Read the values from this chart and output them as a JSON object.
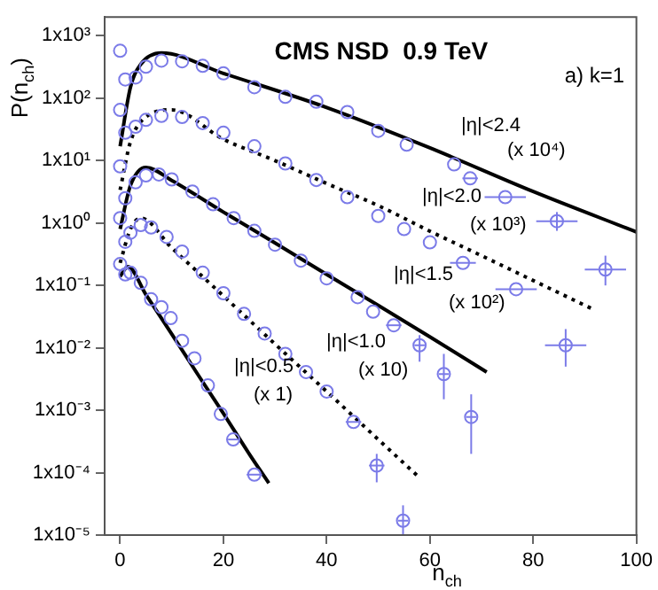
{
  "chart_data": {
    "type": "scatter",
    "title": "CMS NSD  0.9 TeV",
    "xlabel": "n$_{ch}$",
    "ylabel": "P(n$_{ch}$)",
    "log": "y",
    "grid": false,
    "legend": false,
    "marker": "circle",
    "xlim": [
      -3,
      100
    ],
    "xticks": [
      0,
      20,
      40,
      60,
      80,
      100
    ],
    "ylim": [
      1e-05,
      2000
    ],
    "yticks": [
      {
        "value": 1e-05,
        "label": "1x10⁻⁵"
      },
      {
        "value": 0.0001,
        "label": "1x10⁻⁴"
      },
      {
        "value": 0.001,
        "label": "1x10⁻³"
      },
      {
        "value": 0.01,
        "label": "1x10⁻²"
      },
      {
        "value": 0.1,
        "label": "1x10⁻¹"
      },
      {
        "value": 1,
        "label": "1x10⁰"
      },
      {
        "value": 10,
        "label": "1x10¹"
      },
      {
        "value": 100,
        "label": "1x10²"
      },
      {
        "value": 1000,
        "label": "1x10³"
      }
    ],
    "annotations": [
      "a) k=1",
      "|η|<2.4",
      "(x 10⁴)",
      "|η|<2.0",
      "(x 10³)",
      "|η|<1.5",
      "(x 10²)",
      "|η|<1.0",
      "(x 10)",
      "|η|<0.5",
      "(x 1)"
    ],
    "series": [
      {
        "type": "scatter",
        "color": "#7b7be8",
        "x": [
          0,
          1,
          3,
          5,
          8,
          12,
          16,
          20,
          26,
          32,
          38,
          44,
          50,
          55.5,
          64.7,
          67.8,
          74.6,
          84.6,
          94
        ],
        "values": [
          575,
          200,
          215,
          320,
          400,
          390,
          330,
          250,
          150,
          105,
          88,
          60,
          30,
          18,
          8.7,
          5.2,
          2.6,
          1.07,
          0.18
        ],
        "errors": [
          null,
          null,
          null,
          null,
          null,
          null,
          null,
          null,
          null,
          null,
          null,
          null,
          null,
          null,
          null,
          null,
          null,
          [
            0.75,
            1.5
          ],
          [
            0.1,
            0.3
          ]
        ],
        "xerrors": [
          null,
          null,
          null,
          null,
          null,
          null,
          null,
          null,
          null,
          null,
          null,
          null,
          null,
          null,
          null,
          1.5,
          4,
          4,
          4
        ]
      },
      {
        "type": "scatter",
        "color": "#7b7be8",
        "x": [
          0,
          1,
          3,
          5,
          8,
          12,
          16,
          20,
          26,
          32,
          38,
          44,
          50,
          55,
          60,
          66.4,
          76.7,
          86.3
        ],
        "values": [
          65,
          28,
          35,
          45,
          52,
          50,
          40,
          28,
          17,
          9,
          4.9,
          2.6,
          1.3,
          0.8,
          0.49,
          0.23,
          0.087,
          0.011
        ],
        "errors": [
          null,
          null,
          null,
          null,
          null,
          null,
          null,
          null,
          null,
          null,
          null,
          null,
          null,
          null,
          null,
          null,
          null,
          [
            0.005,
            0.02
          ]
        ],
        "xerrors": [
          null,
          null,
          null,
          null,
          null,
          null,
          null,
          null,
          null,
          null,
          null,
          null,
          null,
          null,
          null,
          2.5,
          4,
          4
        ]
      },
      {
        "type": "scatter",
        "color": "#7b7be8",
        "x": [
          0,
          1,
          3,
          5,
          7.5,
          10,
          14,
          18,
          22,
          26,
          30,
          35,
          40,
          46,
          49,
          53,
          58,
          62.7,
          68
        ],
        "values": [
          8.1,
          2.5,
          4.5,
          5.8,
          6,
          5,
          3.2,
          2,
          1.2,
          0.75,
          0.45,
          0.25,
          0.13,
          0.065,
          0.038,
          0.023,
          0.011,
          0.0038,
          0.00078
        ],
        "errors": [
          null,
          null,
          null,
          null,
          null,
          null,
          null,
          null,
          null,
          null,
          null,
          null,
          null,
          null,
          null,
          null,
          [
            0.006,
            0.016
          ],
          [
            0.0015,
            0.008
          ],
          [
            0.0002,
            0.0018
          ]
        ],
        "xerrors": [
          null,
          null,
          null,
          null,
          null,
          null,
          null,
          null,
          null,
          null,
          null,
          null,
          null,
          null,
          null,
          1.5,
          1,
          1,
          1
        ]
      },
      {
        "type": "scatter",
        "color": "#7b7be8",
        "x": [
          0,
          1,
          2,
          4,
          6,
          9,
          12,
          16,
          20,
          24,
          28,
          32,
          36,
          40,
          45.2,
          49.7,
          54.8
        ],
        "values": [
          1.2,
          0.5,
          0.7,
          0.93,
          0.85,
          0.6,
          0.35,
          0.16,
          0.075,
          0.035,
          0.017,
          0.008,
          0.0041,
          0.002,
          0.00065,
          0.00013,
          1.7e-05
        ],
        "errors": [
          null,
          null,
          null,
          null,
          null,
          null,
          null,
          null,
          null,
          null,
          null,
          null,
          null,
          null,
          null,
          [
            7e-05,
            0.0002
          ],
          [
            1e-05,
            3e-05
          ]
        ],
        "xerrors": [
          null,
          null,
          null,
          null,
          null,
          null,
          null,
          null,
          null,
          null,
          null,
          null,
          null,
          null,
          1.5,
          1.5,
          1
        ]
      },
      {
        "type": "scatter",
        "color": "#7b7be8",
        "x": [
          0,
          1,
          2,
          4,
          6,
          8,
          9.8,
          12,
          14.4,
          17,
          19.5,
          21.9,
          26
        ],
        "values": [
          0.22,
          0.15,
          0.16,
          0.11,
          0.06,
          0.045,
          0.03,
          0.013,
          0.0068,
          0.0025,
          0.00087,
          0.00034,
          9.3e-05
        ],
        "xerrors": [
          null,
          null,
          null,
          null,
          null,
          null,
          null,
          null,
          null,
          null,
          null,
          1,
          1.5
        ]
      },
      {
        "type": "line",
        "color": "#000000",
        "line_style": "solid",
        "marker": "none",
        "x": [
          0,
          2,
          4,
          8,
          20,
          40,
          60,
          80,
          100
        ],
        "values": [
          17,
          150,
          350,
          530,
          250,
          71,
          16,
          3.2,
          0.72
        ]
      },
      {
        "type": "line",
        "color": "#000000",
        "line_style": "dotted",
        "marker": "none",
        "x": [
          0,
          2,
          5,
          10,
          20,
          30,
          40,
          50,
          60,
          70,
          80,
          92
        ],
        "values": [
          3.4,
          20,
          50,
          65,
          22,
          10,
          4.3,
          1.9,
          0.74,
          0.3,
          0.12,
          0.04
        ]
      },
      {
        "type": "line",
        "color": "#000000",
        "line_style": "solid",
        "marker": "none",
        "x": [
          0,
          2,
          5,
          10,
          20,
          30,
          40,
          50,
          60,
          71
        ],
        "values": [
          0.8,
          4,
          7.8,
          4.8,
          1.5,
          0.48,
          0.15,
          0.048,
          0.015,
          0.0041
        ]
      },
      {
        "type": "line",
        "color": "#000000",
        "line_style": "dotted",
        "marker": "none",
        "x": [
          0,
          2,
          4,
          10,
          20,
          30,
          40,
          50,
          58
        ],
        "values": [
          0.23,
          0.8,
          1.2,
          0.4,
          0.068,
          0.0115,
          0.002,
          0.00034,
          8.3e-05
        ]
      },
      {
        "type": "line",
        "color": "#000000",
        "line_style": "solid",
        "marker": "none",
        "x": [
          0,
          1.5,
          5,
          10,
          15,
          20,
          25,
          28.8
        ],
        "values": [
          0.14,
          0.2,
          0.071,
          0.0166,
          0.0038,
          0.00089,
          0.0002,
          6.8e-05
        ]
      }
    ]
  }
}
